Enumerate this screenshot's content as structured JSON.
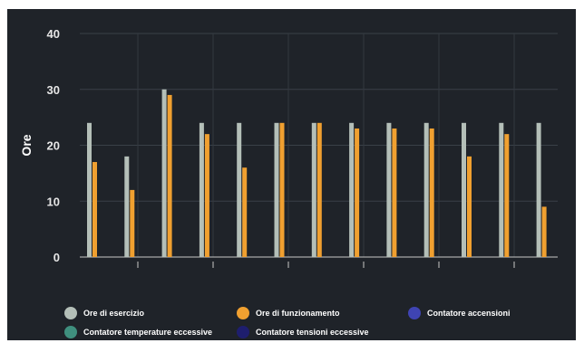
{
  "chart_data": {
    "type": "bar",
    "title": "",
    "xlabel": "",
    "ylabel": "Ore",
    "ylim": [
      0,
      40
    ],
    "yticks": [
      0,
      10,
      20,
      30,
      40
    ],
    "grid": true,
    "legend_position": "bottom",
    "categories": [
      "",
      "",
      "",
      "",
      "",
      "",
      "",
      "",
      "",
      "",
      "",
      "",
      ""
    ],
    "series": [
      {
        "name": "Ore di esercizio",
        "color": "#b4bfb8",
        "values": [
          24,
          18,
          30,
          24,
          24,
          24,
          24,
          24,
          24,
          24,
          24,
          24,
          24
        ]
      },
      {
        "name": "Ore di funzionamento",
        "color": "#f0a030",
        "values": [
          17,
          12,
          29,
          22,
          16,
          24,
          24,
          23,
          23,
          23,
          18,
          22,
          9
        ]
      },
      {
        "name": "Contatore accensioni",
        "color": "#3f44b3",
        "values": [
          0,
          0,
          0,
          0,
          0,
          0,
          0,
          0,
          0,
          0,
          0,
          0,
          0
        ]
      },
      {
        "name": "Contatore temperature eccessive",
        "color": "#3f8f7e",
        "values": [
          0,
          0,
          0,
          0,
          0,
          0,
          0,
          0,
          0,
          0,
          0,
          0,
          0
        ]
      },
      {
        "name": "Contatore tensioni eccessive",
        "color": "#1e1e6e",
        "values": [
          0,
          0,
          0,
          0,
          0,
          0,
          0,
          0,
          0,
          0,
          0,
          0,
          0
        ]
      }
    ]
  }
}
